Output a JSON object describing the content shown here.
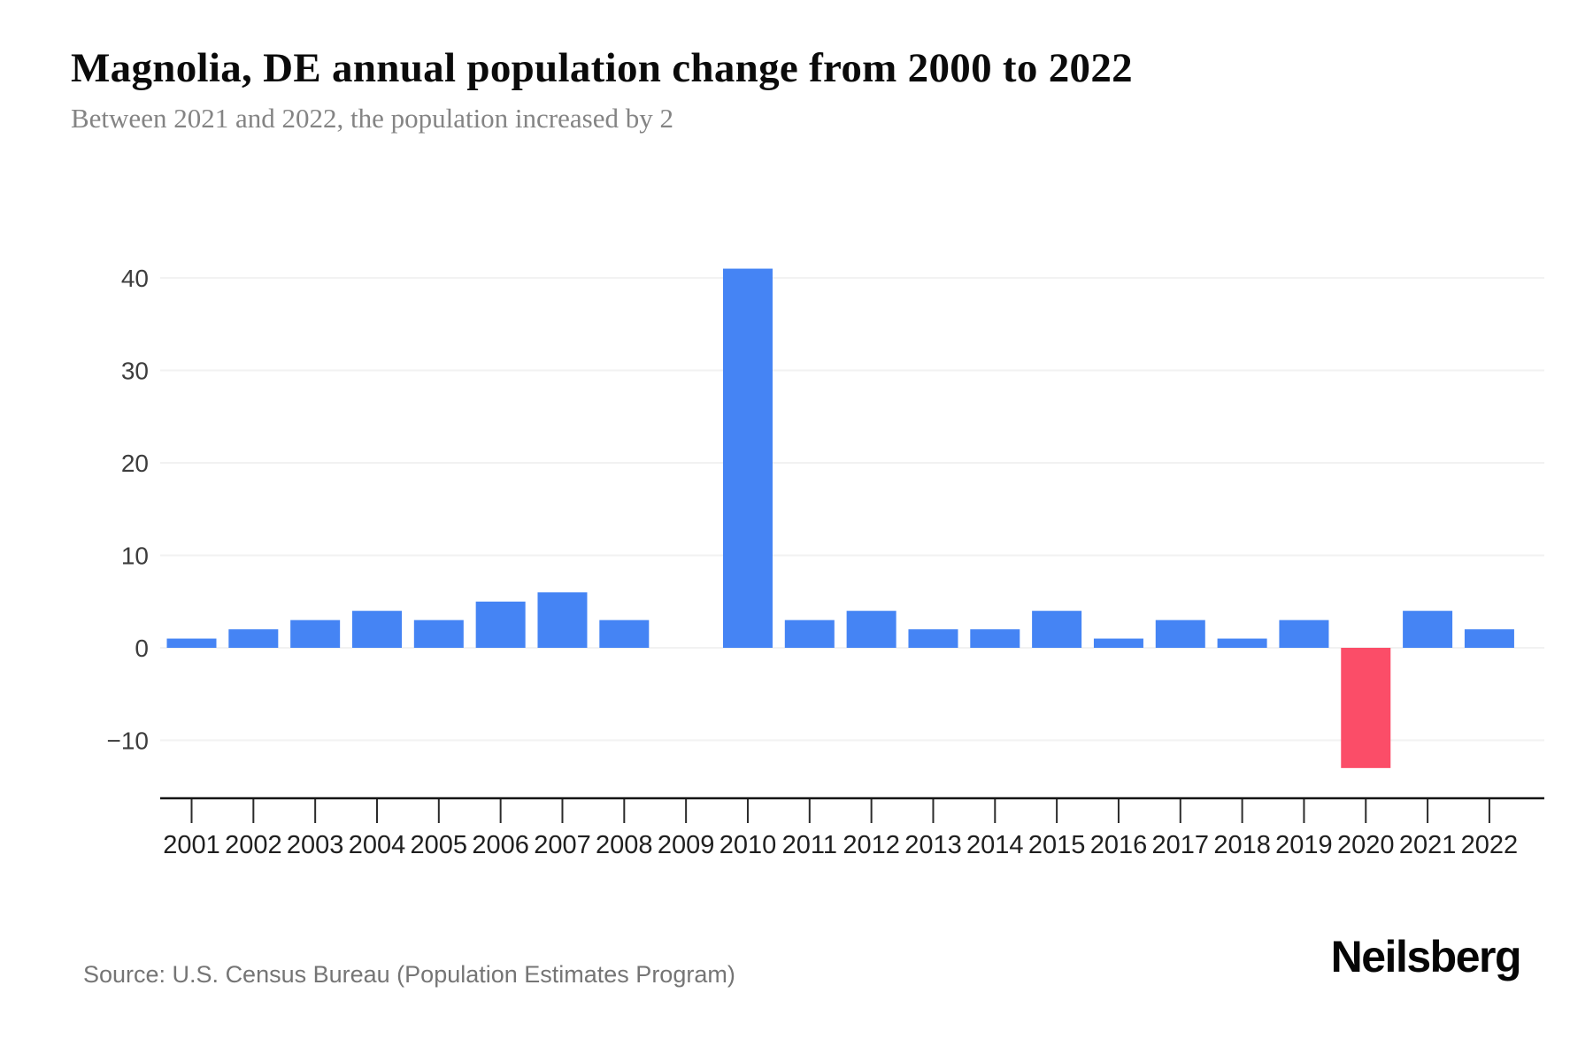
{
  "chart_data": {
    "type": "bar",
    "title": "Magnolia, DE annual population change from 2000 to 2022",
    "subtitle": "Between 2021 and 2022, the population increased by 2",
    "categories": [
      "2001",
      "2002",
      "2003",
      "2004",
      "2005",
      "2006",
      "2007",
      "2008",
      "2009",
      "2010",
      "2011",
      "2012",
      "2013",
      "2014",
      "2015",
      "2016",
      "2017",
      "2018",
      "2019",
      "2020",
      "2021",
      "2022"
    ],
    "values": [
      1,
      2,
      3,
      4,
      3,
      5,
      6,
      3,
      0,
      41,
      3,
      4,
      2,
      2,
      4,
      1,
      3,
      1,
      3,
      -13,
      4,
      2
    ],
    "xlabel": "",
    "ylabel": "",
    "y_ticks": [
      40,
      30,
      20,
      10,
      0,
      -10
    ],
    "ylim": [
      -16,
      44
    ],
    "grid": "horizontal",
    "legend": "none",
    "bar_color_positive": "#4584f4",
    "bar_color_negative": "#fb4d68",
    "grid_color": "#f2f2f2",
    "axis_color": "#141414"
  },
  "footer": {
    "source": "Source: U.S. Census Bureau (Population Estimates Program)",
    "brand": "Neilsberg"
  }
}
